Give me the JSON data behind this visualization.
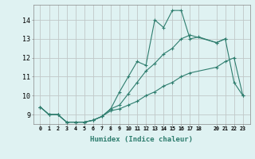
{
  "xlabel": "Humidex (Indice chaleur)",
  "line1_x": [
    0,
    1,
    2,
    3,
    4,
    5,
    6,
    7,
    8,
    9,
    10,
    11,
    12,
    13,
    14,
    15,
    16,
    17,
    18,
    20,
    21
  ],
  "line1_y": [
    9.4,
    9.0,
    9.0,
    8.6,
    8.6,
    8.6,
    8.7,
    8.9,
    9.3,
    10.2,
    11.0,
    11.8,
    11.6,
    14.0,
    13.6,
    14.5,
    14.5,
    13.0,
    13.1,
    12.8,
    13.0
  ],
  "line2_x": [
    0,
    1,
    2,
    3,
    4,
    5,
    6,
    7,
    8,
    9,
    10,
    11,
    12,
    13,
    14,
    15,
    16,
    17,
    20,
    21,
    22,
    23
  ],
  "line2_y": [
    9.4,
    9.0,
    9.0,
    8.6,
    8.6,
    8.6,
    8.7,
    8.9,
    9.3,
    9.5,
    10.1,
    10.7,
    11.3,
    11.7,
    12.2,
    12.5,
    13.0,
    13.2,
    12.8,
    13.0,
    10.7,
    10.0
  ],
  "line3_x": [
    0,
    1,
    2,
    3,
    4,
    5,
    6,
    7,
    8,
    9,
    10,
    11,
    12,
    13,
    14,
    15,
    16,
    17,
    20,
    21,
    22,
    23
  ],
  "line3_y": [
    9.4,
    9.0,
    9.0,
    8.6,
    8.6,
    8.6,
    8.7,
    8.9,
    9.2,
    9.3,
    9.5,
    9.7,
    10.0,
    10.2,
    10.5,
    10.7,
    11.0,
    11.2,
    11.5,
    11.8,
    12.0,
    10.0
  ],
  "line_color": "#2e7d6e",
  "bg_color": "#dff2f2",
  "grid_color": "#c0c8c8",
  "ylim": [
    8.5,
    14.8
  ],
  "yticks": [
    9,
    10,
    11,
    12,
    13,
    14
  ],
  "xtick_vals": [
    0,
    1,
    2,
    3,
    4,
    5,
    6,
    7,
    8,
    9,
    10,
    11,
    12,
    13,
    14,
    15,
    16,
    17,
    18,
    20,
    21,
    22,
    23
  ],
  "xtick_labels": [
    "0",
    "1",
    "2",
    "3",
    "4",
    "5",
    "6",
    "7",
    "8",
    "9",
    "10",
    "11",
    "12",
    "13",
    "14",
    "15",
    "16",
    "17",
    "18",
    "20",
    "21",
    "22",
    "23"
  ]
}
